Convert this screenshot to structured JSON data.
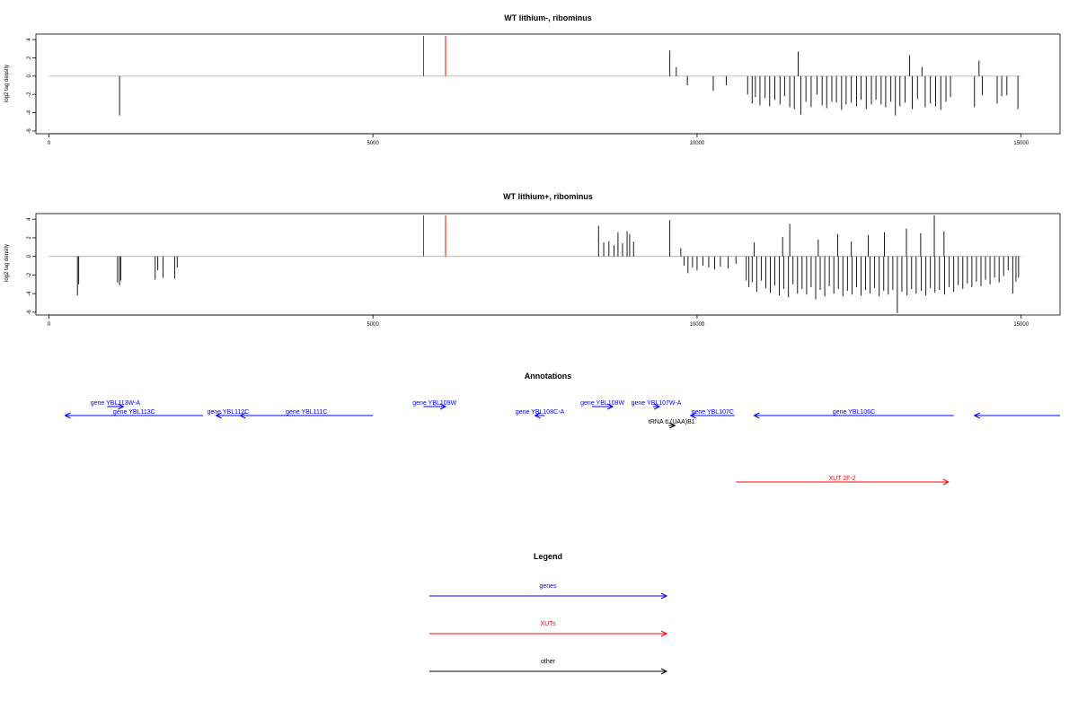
{
  "colors": {
    "gene": "#0000ff",
    "xut": "#ff0000",
    "other": "#000000",
    "highlight": "#ff0000",
    "bar": "#000000",
    "baseline": "#aaaaaa"
  },
  "chart_data": [
    {
      "type": "bar",
      "title": "WT lithium-, ribominus",
      "xlabel": "",
      "ylabel": "log2 tag density",
      "xlim": [
        -200,
        15600
      ],
      "ylim": [
        -6.3,
        4.6
      ],
      "xticks": [
        0,
        5000,
        10000,
        15000
      ],
      "yticks": [
        4,
        2,
        0,
        -2,
        -4,
        -6
      ],
      "baseline": {
        "x_start": 0,
        "x_end": 15000,
        "y": 0
      },
      "highlight_lines": [
        {
          "x": 5780,
          "y0": 0,
          "y1": 4.4
        },
        {
          "x": 6120,
          "y0": 0,
          "y1": 4.4
        }
      ],
      "series": [
        {
          "values": [
            {
              "x": 1090,
              "y": -4.3
            },
            {
              "x": 9580,
              "y": 2.8
            },
            {
              "x": 9680,
              "y": 1.0
            },
            {
              "x": 9850,
              "y": -1.0
            },
            {
              "x": 10250,
              "y": -1.6
            },
            {
              "x": 10450,
              "y": -1.0
            },
            {
              "x": 10780,
              "y": -2.0
            },
            {
              "x": 10850,
              "y": -3.0
            },
            {
              "x": 10900,
              "y": -2.3
            },
            {
              "x": 10970,
              "y": -3.2
            },
            {
              "x": 11050,
              "y": -2.4
            },
            {
              "x": 11120,
              "y": -3.3
            },
            {
              "x": 11200,
              "y": -2.6
            },
            {
              "x": 11280,
              "y": -3.1
            },
            {
              "x": 11350,
              "y": -2.2
            },
            {
              "x": 11430,
              "y": -3.4
            },
            {
              "x": 11500,
              "y": -3.6
            },
            {
              "x": 11560,
              "y": 2.7
            },
            {
              "x": 11600,
              "y": -4.2
            },
            {
              "x": 11680,
              "y": -2.8
            },
            {
              "x": 11760,
              "y": -3.4
            },
            {
              "x": 11850,
              "y": -2.0
            },
            {
              "x": 11930,
              "y": -3.2
            },
            {
              "x": 12000,
              "y": -3.5
            },
            {
              "x": 12080,
              "y": -2.8
            },
            {
              "x": 12150,
              "y": -2.9
            },
            {
              "x": 12230,
              "y": -3.7
            },
            {
              "x": 12300,
              "y": -3.1
            },
            {
              "x": 12380,
              "y": -2.9
            },
            {
              "x": 12460,
              "y": -3.3
            },
            {
              "x": 12530,
              "y": -2.6
            },
            {
              "x": 12610,
              "y": -3.6
            },
            {
              "x": 12690,
              "y": -3.1
            },
            {
              "x": 12760,
              "y": -2.6
            },
            {
              "x": 12840,
              "y": -3.1
            },
            {
              "x": 12910,
              "y": -3.4
            },
            {
              "x": 12990,
              "y": -2.8
            },
            {
              "x": 13060,
              "y": -4.3
            },
            {
              "x": 13130,
              "y": -3.3
            },
            {
              "x": 13210,
              "y": -2.9
            },
            {
              "x": 13280,
              "y": 2.3
            },
            {
              "x": 13320,
              "y": -3.6
            },
            {
              "x": 13400,
              "y": -2.5
            },
            {
              "x": 13470,
              "y": 1.0
            },
            {
              "x": 13520,
              "y": -3.4
            },
            {
              "x": 13600,
              "y": -3.0
            },
            {
              "x": 13680,
              "y": -3.3
            },
            {
              "x": 13760,
              "y": -3.7
            },
            {
              "x": 13840,
              "y": -2.8
            },
            {
              "x": 13910,
              "y": -2.3
            },
            {
              "x": 14280,
              "y": -3.4
            },
            {
              "x": 14350,
              "y": 1.7
            },
            {
              "x": 14400,
              "y": -2.1
            },
            {
              "x": 14630,
              "y": -3.0
            },
            {
              "x": 14700,
              "y": -2.2
            },
            {
              "x": 14780,
              "y": -2.1
            },
            {
              "x": 14950,
              "y": -3.6
            }
          ]
        }
      ]
    },
    {
      "type": "bar",
      "title": "WT lithium+, ribominus",
      "xlabel": "",
      "ylabel": "log2 tag density",
      "xlim": [
        -200,
        15600
      ],
      "ylim": [
        -6.3,
        4.6
      ],
      "xticks": [
        0,
        5000,
        10000,
        15000
      ],
      "yticks": [
        4,
        2,
        0,
        -2,
        -4,
        -6
      ],
      "baseline": {
        "x_start": 0,
        "x_end": 15000,
        "y": 0
      },
      "highlight_lines": [
        {
          "x": 5780,
          "y0": 0,
          "y1": 4.4
        },
        {
          "x": 6120,
          "y0": 0,
          "y1": 4.4
        }
      ],
      "series": [
        {
          "values": [
            {
              "x": 440,
              "y": -4.2
            },
            {
              "x": 460,
              "y": -3.0
            },
            {
              "x": 1060,
              "y": -2.8
            },
            {
              "x": 1090,
              "y": -3.1
            },
            {
              "x": 1110,
              "y": -2.6
            },
            {
              "x": 1640,
              "y": -2.5
            },
            {
              "x": 1680,
              "y": -1.5
            },
            {
              "x": 1760,
              "y": -2.3
            },
            {
              "x": 1940,
              "y": -2.4
            },
            {
              "x": 1980,
              "y": -1.2
            },
            {
              "x": 8480,
              "y": 3.3
            },
            {
              "x": 8560,
              "y": 1.5
            },
            {
              "x": 8640,
              "y": 1.6
            },
            {
              "x": 8720,
              "y": 1.2
            },
            {
              "x": 8780,
              "y": 2.6
            },
            {
              "x": 8850,
              "y": 1.4
            },
            {
              "x": 8920,
              "y": 2.7
            },
            {
              "x": 8960,
              "y": 2.4
            },
            {
              "x": 9020,
              "y": 1.6
            },
            {
              "x": 9580,
              "y": 3.9
            },
            {
              "x": 9750,
              "y": 0.9
            },
            {
              "x": 9800,
              "y": -1.0
            },
            {
              "x": 9860,
              "y": -1.8
            },
            {
              "x": 9930,
              "y": -1.2
            },
            {
              "x": 10000,
              "y": -1.5
            },
            {
              "x": 10090,
              "y": -1.0
            },
            {
              "x": 10180,
              "y": -1.2
            },
            {
              "x": 10270,
              "y": -1.4
            },
            {
              "x": 10360,
              "y": -1.1
            },
            {
              "x": 10480,
              "y": -1.3
            },
            {
              "x": 10600,
              "y": -0.8
            },
            {
              "x": 10760,
              "y": -2.6
            },
            {
              "x": 10800,
              "y": -3.3
            },
            {
              "x": 10850,
              "y": -2.8
            },
            {
              "x": 10880,
              "y": 1.5
            },
            {
              "x": 10920,
              "y": -3.8
            },
            {
              "x": 10990,
              "y": -2.6
            },
            {
              "x": 11060,
              "y": -3.4
            },
            {
              "x": 11130,
              "y": -3.9
            },
            {
              "x": 11200,
              "y": -3.1
            },
            {
              "x": 11270,
              "y": -4.2
            },
            {
              "x": 11320,
              "y": 2.1
            },
            {
              "x": 11340,
              "y": -3.5
            },
            {
              "x": 11410,
              "y": -4.4
            },
            {
              "x": 11430,
              "y": 3.5
            },
            {
              "x": 11480,
              "y": -3.0
            },
            {
              "x": 11550,
              "y": -4.0
            },
            {
              "x": 11620,
              "y": -3.5
            },
            {
              "x": 11690,
              "y": -4.1
            },
            {
              "x": 11760,
              "y": -3.3
            },
            {
              "x": 11830,
              "y": -4.6
            },
            {
              "x": 11870,
              "y": 1.8
            },
            {
              "x": 11900,
              "y": -3.6
            },
            {
              "x": 11970,
              "y": -4.3
            },
            {
              "x": 12040,
              "y": -3.2
            },
            {
              "x": 12110,
              "y": -4.0
            },
            {
              "x": 12170,
              "y": 2.4
            },
            {
              "x": 12180,
              "y": -3.5
            },
            {
              "x": 12250,
              "y": -4.3
            },
            {
              "x": 12320,
              "y": -3.7
            },
            {
              "x": 12380,
              "y": 1.6
            },
            {
              "x": 12390,
              "y": -4.1
            },
            {
              "x": 12460,
              "y": -3.3
            },
            {
              "x": 12530,
              "y": -4.2
            },
            {
              "x": 12600,
              "y": -3.6
            },
            {
              "x": 12640,
              "y": 2.3
            },
            {
              "x": 12670,
              "y": -4.0
            },
            {
              "x": 12740,
              "y": -3.4
            },
            {
              "x": 12810,
              "y": -4.3
            },
            {
              "x": 12880,
              "y": -3.7
            },
            {
              "x": 12890,
              "y": 2.6
            },
            {
              "x": 12950,
              "y": -4.1
            },
            {
              "x": 13020,
              "y": -3.6
            },
            {
              "x": 13090,
              "y": -6.1
            },
            {
              "x": 13160,
              "y": -3.8
            },
            {
              "x": 13230,
              "y": 3.0
            },
            {
              "x": 13240,
              "y": -4.2
            },
            {
              "x": 13310,
              "y": -3.5
            },
            {
              "x": 13380,
              "y": -4.0
            },
            {
              "x": 13450,
              "y": 2.5
            },
            {
              "x": 13460,
              "y": -3.7
            },
            {
              "x": 13530,
              "y": -4.2
            },
            {
              "x": 13600,
              "y": -3.4
            },
            {
              "x": 13660,
              "y": 4.4
            },
            {
              "x": 13670,
              "y": -3.9
            },
            {
              "x": 13740,
              "y": -3.6
            },
            {
              "x": 13810,
              "y": 2.7
            },
            {
              "x": 13820,
              "y": -4.1
            },
            {
              "x": 13890,
              "y": -3.3
            },
            {
              "x": 13960,
              "y": -3.8
            },
            {
              "x": 14030,
              "y": -3.1
            },
            {
              "x": 14100,
              "y": -3.5
            },
            {
              "x": 14170,
              "y": -2.9
            },
            {
              "x": 14240,
              "y": -3.3
            },
            {
              "x": 14310,
              "y": -2.7
            },
            {
              "x": 14380,
              "y": -3.2
            },
            {
              "x": 14450,
              "y": -2.5
            },
            {
              "x": 14520,
              "y": -3.0
            },
            {
              "x": 14590,
              "y": -2.3
            },
            {
              "x": 14660,
              "y": -2.8
            },
            {
              "x": 14730,
              "y": -2.1
            },
            {
              "x": 14800,
              "y": -1.5
            },
            {
              "x": 14870,
              "y": -4.0
            },
            {
              "x": 14920,
              "y": -2.7
            },
            {
              "x": 14960,
              "y": -2.3
            }
          ]
        }
      ]
    }
  ],
  "annotations": {
    "title": "Annotations",
    "xlim": [
      -200,
      15600
    ],
    "features": [
      {
        "label": "gene YBL113W-A",
        "category": "gene",
        "start": 900,
        "end": 1150,
        "strand": "+",
        "row": 0
      },
      {
        "label": "gene YBL113C",
        "category": "gene",
        "start": 250,
        "end": 2380,
        "strand": "-",
        "row": 1
      },
      {
        "label": "gene YBL112C",
        "category": "gene",
        "start": 2580,
        "end": 2950,
        "strand": "-",
        "row": 1
      },
      {
        "label": "gene YBL111C",
        "category": "gene",
        "start": 2950,
        "end": 5000,
        "strand": "-",
        "row": 1
      },
      {
        "label": "gene YBL109W",
        "category": "gene",
        "start": 5780,
        "end": 6120,
        "strand": "+",
        "row": 0
      },
      {
        "label": "gene YBL108C-A",
        "category": "gene",
        "start": 7500,
        "end": 7650,
        "strand": "-",
        "row": 1
      },
      {
        "label": "gene YBL108W",
        "category": "gene",
        "start": 8380,
        "end": 8700,
        "strand": "+",
        "row": 0
      },
      {
        "label": "gene YBL107W-A",
        "category": "gene",
        "start": 9320,
        "end": 9420,
        "strand": "+",
        "row": 0
      },
      {
        "label": "gene YBL107C",
        "category": "gene",
        "start": 9900,
        "end": 10580,
        "strand": "-",
        "row": 1
      },
      {
        "label": "tRNA tL(UAA)B1",
        "category": "other",
        "start": 9560,
        "end": 9660,
        "strand": "+",
        "row": 2
      },
      {
        "label": "gene YBL106C",
        "category": "gene",
        "start": 10880,
        "end": 13960,
        "strand": "-",
        "row": 1
      },
      {
        "label": "",
        "category": "gene",
        "start": 14280,
        "end": 15600,
        "strand": "-",
        "row": 1
      },
      {
        "label": "XUT 2F-2",
        "category": "xut",
        "start": 10600,
        "end": 13880,
        "strand": "+",
        "row": 3
      }
    ]
  },
  "legend": {
    "title": "Legend",
    "items": [
      {
        "label": "genes",
        "category": "gene"
      },
      {
        "label": "XUTs",
        "category": "xut"
      },
      {
        "label": "other",
        "category": "other"
      }
    ]
  }
}
